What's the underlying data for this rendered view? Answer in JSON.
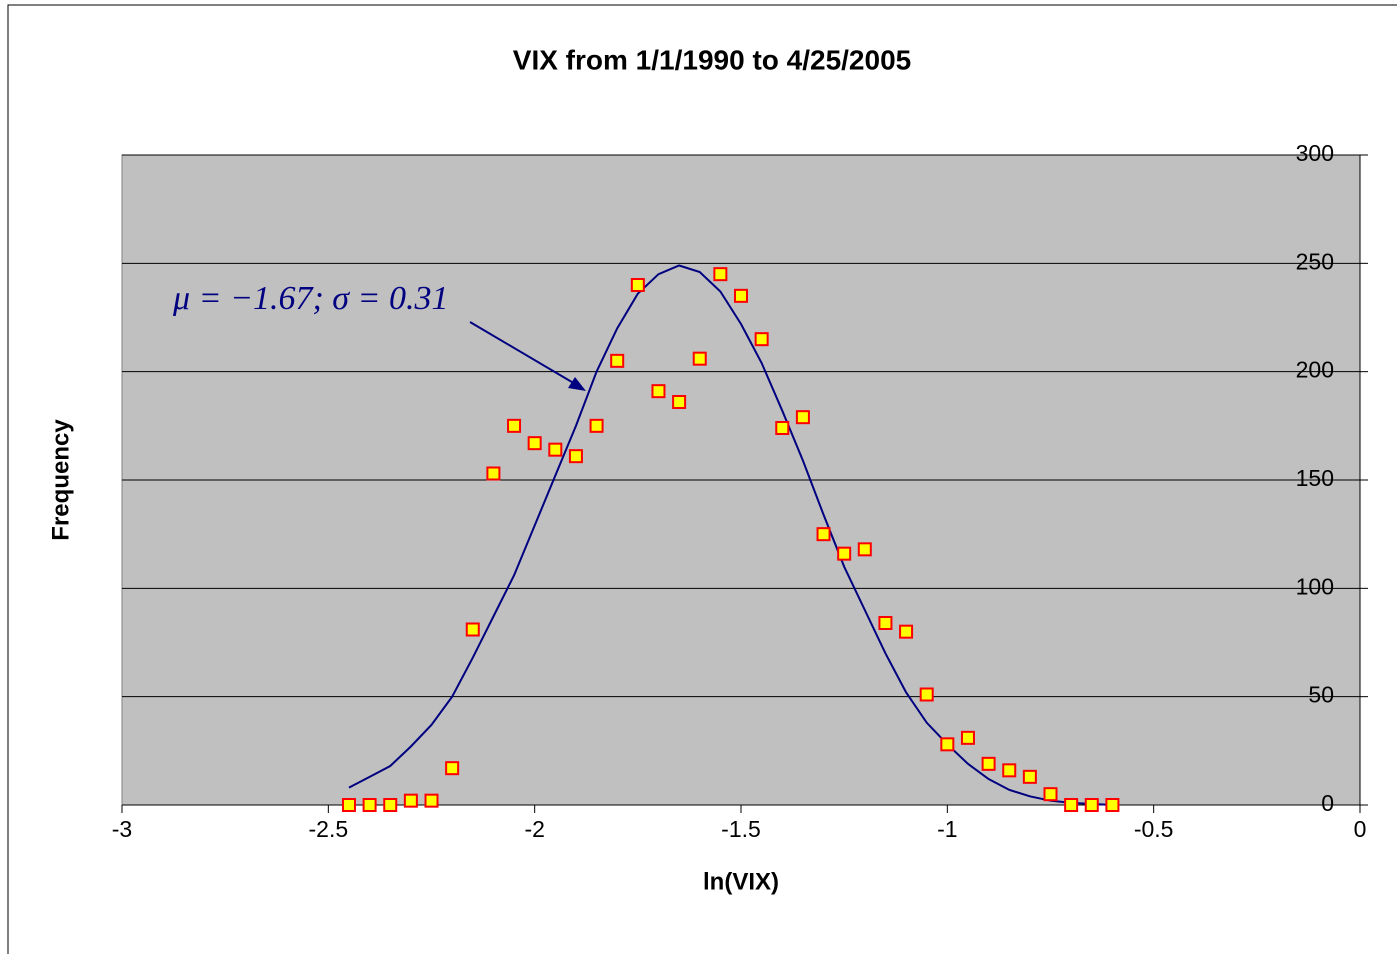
{
  "chart_data": {
    "type": "scatter",
    "title": "VIX from 1/1/1990 to 4/25/2005",
    "x_label": "ln(VIX)",
    "y_label": "Frequency",
    "annotation": "μ = −1.67; σ = 0.31",
    "x": [
      -2.45,
      -2.4,
      -2.35,
      -2.3,
      -2.25,
      -2.2,
      -2.15,
      -2.1,
      -2.05,
      -2,
      -1.95,
      -1.9,
      -1.85,
      -1.8,
      -1.75,
      -1.7,
      -1.65,
      -1.6,
      -1.55,
      -1.5,
      -1.45,
      -1.4,
      -1.35,
      -1.3,
      -1.25,
      -1.2,
      -1.15,
      -1.1,
      -1.05,
      -1,
      -0.95,
      -0.9,
      -0.85,
      -0.8,
      -0.75,
      -0.7,
      -0.65,
      -0.6
    ],
    "series": [
      {
        "type": "scatter",
        "color": "#ffff00",
        "edgecolor": "#ff0000",
        "values": [
          0,
          0,
          0,
          2,
          2,
          17,
          81,
          153,
          175,
          167,
          164,
          161,
          175,
          205,
          240,
          191,
          186,
          206,
          245,
          235,
          215,
          174,
          179,
          125,
          116,
          118,
          84,
          80,
          51,
          28,
          31,
          19,
          16,
          13,
          5,
          0,
          0,
          0
        ]
      },
      {
        "type": "line",
        "color": "#000080",
        "values": [
          8,
          13,
          18,
          27,
          37,
          50,
          68,
          87,
          106,
          129,
          152,
          175,
          200,
          220,
          236,
          245,
          249,
          246,
          237,
          222,
          204,
          182,
          159,
          134,
          110,
          90,
          70,
          52,
          38,
          28,
          19,
          12,
          7,
          4,
          2,
          1,
          0.5,
          0
        ]
      }
    ],
    "xlim": [
      -3,
      0
    ],
    "ylim": [
      0,
      300
    ],
    "xticks": [
      -3,
      -2.5,
      -2,
      -1.5,
      -1,
      -0.5,
      0
    ],
    "yticks": [
      0,
      50,
      100,
      150,
      200,
      250,
      300
    ],
    "plot_background": "#c0c0c0",
    "grid": true
  }
}
